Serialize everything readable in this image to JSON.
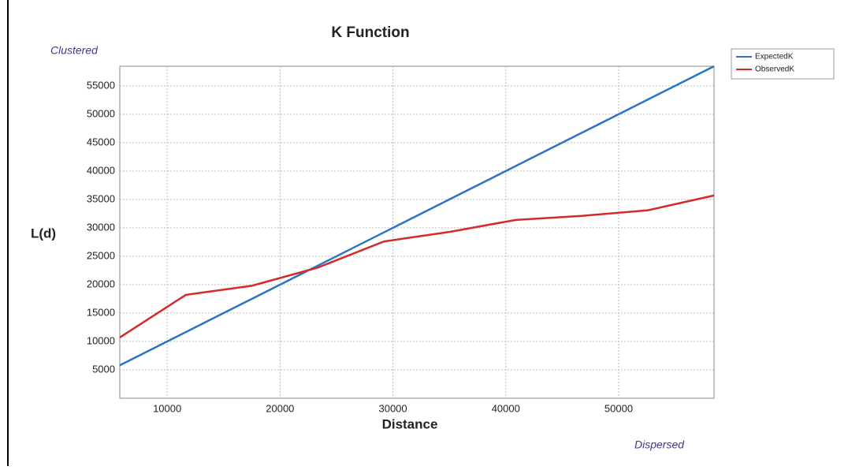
{
  "chart_data": {
    "type": "line",
    "title": "K Function",
    "x_label": "Distance",
    "y_label": "L(d)",
    "annotations": [
      "Clustered",
      "Dispersed"
    ],
    "x": [
      5800,
      11650,
      17500,
      23350,
      29200,
      35050,
      40900,
      46750,
      52600,
      58450
    ],
    "series": [
      {
        "name": "ExpectedK",
        "color": "#2a76c6",
        "values": [
          5800,
          11650,
          17500,
          23350,
          29200,
          35050,
          40900,
          46750,
          52600,
          58450
        ]
      },
      {
        "name": "ObservedK",
        "color": "#d42a2a",
        "values": [
          10700,
          18200,
          19800,
          23000,
          27600,
          29300,
          31400,
          32100,
          33100,
          35700
        ]
      }
    ],
    "xlim": [
      5800,
      58450
    ],
    "xticks": [
      10000,
      20000,
      30000,
      40000,
      50000
    ],
    "ylim": [
      0,
      58450
    ],
    "yticks": [
      5000,
      10000,
      15000,
      20000,
      25000,
      30000,
      35000,
      40000,
      45000,
      50000,
      55000
    ],
    "grid": true,
    "legend": "top-right"
  }
}
